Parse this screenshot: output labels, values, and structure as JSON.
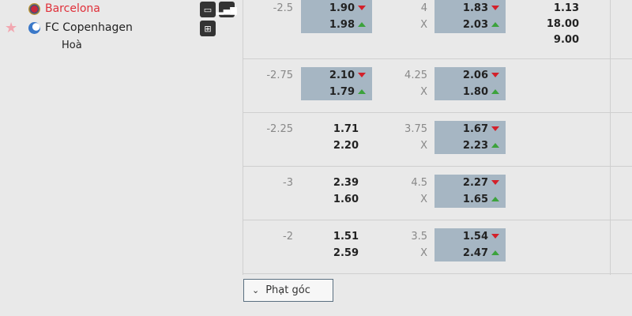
{
  "match": {
    "home": "Barcelona",
    "away": "FC Copenhagen",
    "draw": "Hoà",
    "home_color": "#e0303a"
  },
  "rows": [
    {
      "handicap": "-2.5",
      "h_home": "1.90",
      "h_away": "1.98",
      "h_hl": true,
      "h_arrows": true,
      "total": "4",
      "total_x": "X",
      "t_over": "1.83",
      "t_under": "2.03",
      "x12": [
        "1.13",
        "18.00",
        "9.00"
      ]
    },
    {
      "handicap": "-2.75",
      "h_home": "2.10",
      "h_away": "1.79",
      "h_hl": true,
      "h_arrows": true,
      "total": "4.25",
      "total_x": "X",
      "t_over": "2.06",
      "t_under": "1.80"
    },
    {
      "handicap": "-2.25",
      "h_home": "1.71",
      "h_away": "2.20",
      "h_hl": false,
      "h_arrows": false,
      "total": "3.75",
      "total_x": "X",
      "t_over": "1.67",
      "t_under": "2.23"
    },
    {
      "handicap": "-3",
      "h_home": "2.39",
      "h_away": "1.60",
      "h_hl": false,
      "h_arrows": false,
      "total": "4.5",
      "total_x": "X",
      "t_over": "2.27",
      "t_under": "1.65"
    },
    {
      "handicap": "-2",
      "h_home": "1.51",
      "h_away": "2.59",
      "h_hl": false,
      "h_arrows": false,
      "total": "3.5",
      "total_x": "X",
      "t_over": "1.54",
      "t_under": "2.47"
    }
  ],
  "corner_button": "Phạt góc",
  "colors": {
    "highlight": "#a6b6c3",
    "down": "#d3202a",
    "up": "#3ca23c"
  }
}
